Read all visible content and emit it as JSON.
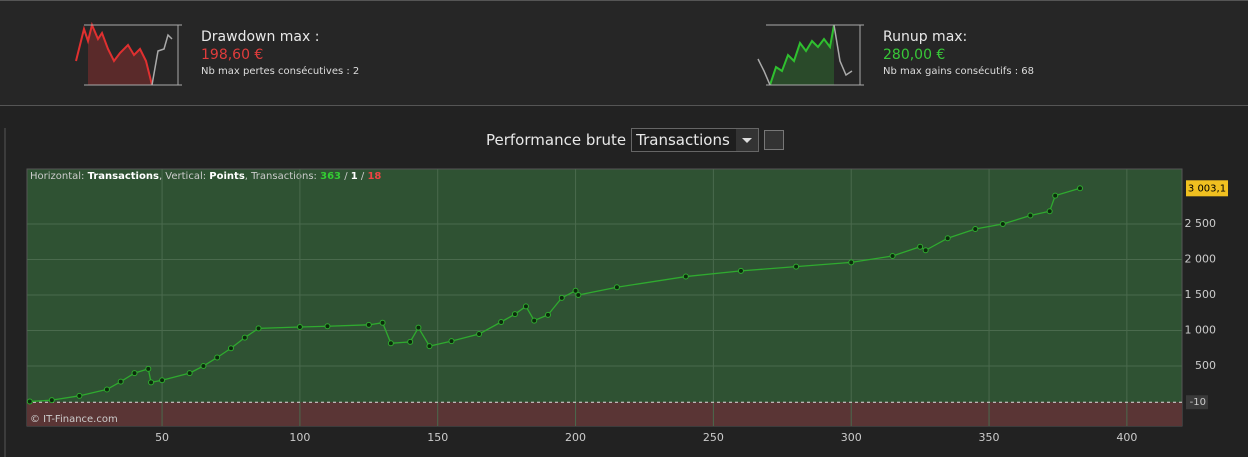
{
  "drawdown": {
    "label": "Drawdown max :",
    "value": "198,60 €",
    "note": "Nb max pertes consécutives : 2"
  },
  "runup": {
    "label": "Runup max:",
    "value": "280,00 €",
    "note": "Nb max gains consécutifs : 68"
  },
  "toolbar": {
    "title": "Performance brute",
    "select": "Transactions"
  },
  "chart_data": {
    "type": "line",
    "info": {
      "h_label": "Horizontal:",
      "h_value": "Transactions",
      "v_label": ", Vertical:",
      "v_value": "Points",
      "t_label": ", Transactions:",
      "wins": 363,
      "sep": "/",
      "even": 1,
      "losses": 18
    },
    "credit": "© IT-Finance.com",
    "x": [
      2,
      10,
      20,
      30,
      35,
      40,
      45,
      46,
      50,
      60,
      65,
      70,
      75,
      80,
      85,
      100,
      110,
      125,
      130,
      133,
      140,
      143,
      147,
      155,
      165,
      173,
      178,
      182,
      185,
      190,
      195,
      200,
      201,
      215,
      240,
      260,
      280,
      300,
      315,
      325,
      327,
      335,
      345,
      355,
      365,
      372,
      374,
      383
    ],
    "series": [
      {
        "color": "#2faa2f",
        "values": [
          0,
          20,
          80,
          170,
          280,
          400,
          460,
          270,
          300,
          400,
          500,
          620,
          750,
          900,
          1030,
          1050,
          1060,
          1080,
          1110,
          820,
          840,
          1040,
          780,
          850,
          950,
          1120,
          1230,
          1340,
          1140,
          1220,
          1460,
          1560,
          1500,
          1610,
          1760,
          1840,
          1900,
          1960,
          2050,
          2180,
          2130,
          2300,
          2430,
          2500,
          2620,
          2680,
          2900,
          3003.1
        ]
      }
    ],
    "last_label": {
      "value": 3003.1,
      "label": "3 003,1"
    },
    "ref_line": -10,
    "xlim": [
      1,
      420
    ],
    "ylim": [
      -345,
      3275
    ],
    "xticks": [
      50,
      100,
      150,
      200,
      250,
      300,
      350,
      400
    ],
    "yticks": [
      500,
      {
        "value": 1000,
        "label": "1 000"
      },
      {
        "value": 1500,
        "label": "1 500"
      },
      {
        "value": 2000,
        "label": "2 000"
      },
      {
        "value": 2500,
        "label": "2 500"
      }
    ],
    "grid": true
  }
}
